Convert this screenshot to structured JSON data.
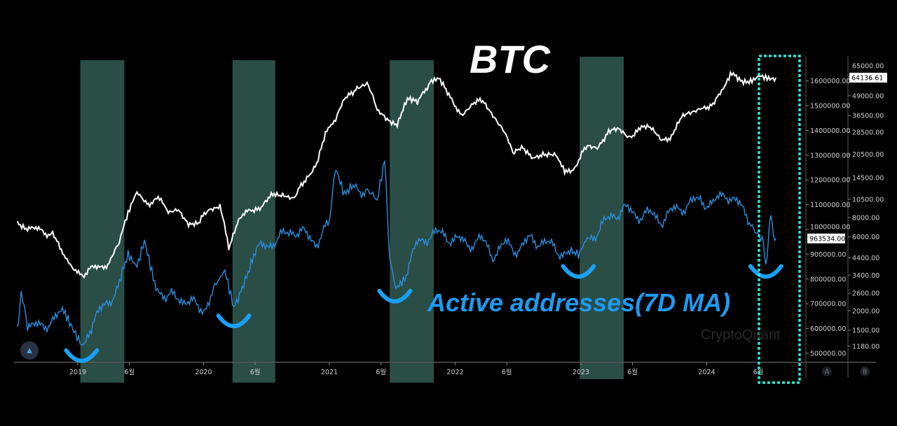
{
  "chart_data": {
    "type": "line",
    "title": "BTC",
    "annotation": "Active addresses(7D MA)",
    "watermark": "CryptoQuant",
    "x_ticks": [
      "2019",
      "6월",
      "2020",
      "6월",
      "2021",
      "6월",
      "2022",
      "6월",
      "2023",
      "6월",
      "2024",
      "6월"
    ],
    "x_tick_dates": [
      2019.0,
      2019.41,
      2020.0,
      2020.41,
      2021.0,
      2021.41,
      2022.0,
      2022.41,
      2023.0,
      2023.41,
      2024.0,
      2024.41
    ],
    "axis_a": {
      "label": "A",
      "scale": "linear",
      "ticks": [
        "500000.00",
        "600000.00",
        "700000.00",
        "800000.00",
        "900000.00",
        "1000000.00",
        "1100000.00",
        "1200000.00",
        "1300000.00",
        "1400000.00",
        "1500000.00",
        "1600000.00"
      ],
      "current": "963534.00"
    },
    "axis_b": {
      "label": "B",
      "scale": "log",
      "ticks": [
        "1180.00",
        "1500.00",
        "2000.00",
        "2600.00",
        "3400.00",
        "4400.00",
        "6000.00",
        "8000.00",
        "10500.00",
        "14500.00",
        "20500.00",
        "28500.00",
        "36500.00",
        "49000.00",
        "65000.00"
      ],
      "current": "64136.61"
    },
    "shaded_periods": [
      [
        2019.02,
        2019.37
      ],
      [
        2020.23,
        2020.57
      ],
      [
        2021.48,
        2021.83
      ],
      [
        2022.99,
        2023.34
      ]
    ],
    "highlight_period": [
      2024.43,
      2024.75
    ],
    "dips": [
      2019.03,
      2020.24,
      2021.52,
      2022.98,
      2024.47
    ],
    "colors": {
      "btc": "#ffffff",
      "addresses": "#2b8fe0",
      "shade": "#2a4d46",
      "highlight": "#2ee6d6",
      "annotation": "#1e9bf0"
    },
    "series": [
      {
        "name": "BTC",
        "axis": "B",
        "points": [
          [
            2018.52,
            7500
          ],
          [
            2018.6,
            7000
          ],
          [
            2018.7,
            6500
          ],
          [
            2018.8,
            6400
          ],
          [
            2018.88,
            4500
          ],
          [
            2018.95,
            3700
          ],
          [
            2019.05,
            3500
          ],
          [
            2019.15,
            3800
          ],
          [
            2019.25,
            4100
          ],
          [
            2019.33,
            5300
          ],
          [
            2019.4,
            8200
          ],
          [
            2019.47,
            11500
          ],
          [
            2019.55,
            10200
          ],
          [
            2019.65,
            10300
          ],
          [
            2019.72,
            8300
          ],
          [
            2019.8,
            9200
          ],
          [
            2019.88,
            7500
          ],
          [
            2019.96,
            7200
          ],
          [
            2020.05,
            9000
          ],
          [
            2020.13,
            9900
          ],
          [
            2020.2,
            5200
          ],
          [
            2020.28,
            7500
          ],
          [
            2020.38,
            9300
          ],
          [
            2020.47,
            9300
          ],
          [
            2020.56,
            11300
          ],
          [
            2020.64,
            11600
          ],
          [
            2020.72,
            10700
          ],
          [
            2020.81,
            13500
          ],
          [
            2020.9,
            18500
          ],
          [
            2020.98,
            29000
          ],
          [
            2021.05,
            33000
          ],
          [
            2021.13,
            47000
          ],
          [
            2021.22,
            57000
          ],
          [
            2021.3,
            58000
          ],
          [
            2021.38,
            38000
          ],
          [
            2021.46,
            35000
          ],
          [
            2021.54,
            33000
          ],
          [
            2021.62,
            46000
          ],
          [
            2021.7,
            43000
          ],
          [
            2021.8,
            62000
          ],
          [
            2021.87,
            64000
          ],
          [
            2021.95,
            47000
          ],
          [
            2022.05,
            38000
          ],
          [
            2022.13,
            42000
          ],
          [
            2022.22,
            45000
          ],
          [
            2022.3,
            38000
          ],
          [
            2022.38,
            30000
          ],
          [
            2022.46,
            20000
          ],
          [
            2022.54,
            22500
          ],
          [
            2022.63,
            20000
          ],
          [
            2022.72,
            19500
          ],
          [
            2022.8,
            20500
          ],
          [
            2022.87,
            16500
          ],
          [
            2022.96,
            16700
          ],
          [
            2023.05,
            23000
          ],
          [
            2023.13,
            23500
          ],
          [
            2023.22,
            28000
          ],
          [
            2023.3,
            29000
          ],
          [
            2023.38,
            27000
          ],
          [
            2023.47,
            30500
          ],
          [
            2023.55,
            29500
          ],
          [
            2023.63,
            26000
          ],
          [
            2023.72,
            27000
          ],
          [
            2023.8,
            34500
          ],
          [
            2023.88,
            37500
          ],
          [
            2023.96,
            42500
          ],
          [
            2024.05,
            42000
          ],
          [
            2024.13,
            52000
          ],
          [
            2024.2,
            68000
          ],
          [
            2024.28,
            63000
          ],
          [
            2024.36,
            62000
          ],
          [
            2024.42,
            68000
          ],
          [
            2024.48,
            66000
          ],
          [
            2024.55,
            64136.61
          ]
        ]
      },
      {
        "name": "Active addresses(7D MA)",
        "axis": "A",
        "points": [
          [
            2018.52,
            600000
          ],
          [
            2018.55,
            760000
          ],
          [
            2018.6,
            620000
          ],
          [
            2018.7,
            600000
          ],
          [
            2018.8,
            640000
          ],
          [
            2018.9,
            660000
          ],
          [
            2018.97,
            600000
          ],
          [
            2019.03,
            540000
          ],
          [
            2019.12,
            620000
          ],
          [
            2019.22,
            700000
          ],
          [
            2019.32,
            760000
          ],
          [
            2019.4,
            880000
          ],
          [
            2019.47,
            840000
          ],
          [
            2019.53,
            940000
          ],
          [
            2019.6,
            800000
          ],
          [
            2019.7,
            720000
          ],
          [
            2019.8,
            730000
          ],
          [
            2019.9,
            700000
          ],
          [
            2020.0,
            680000
          ],
          [
            2020.1,
            760000
          ],
          [
            2020.17,
            820000
          ],
          [
            2020.24,
            680000
          ],
          [
            2020.32,
            800000
          ],
          [
            2020.4,
            900000
          ],
          [
            2020.5,
            940000
          ],
          [
            2020.6,
            960000
          ],
          [
            2020.7,
            1000000
          ],
          [
            2020.8,
            980000
          ],
          [
            2020.9,
            950000
          ],
          [
            2021.0,
            1020000
          ],
          [
            2021.05,
            1230000
          ],
          [
            2021.12,
            1120000
          ],
          [
            2021.2,
            1180000
          ],
          [
            2021.3,
            1150000
          ],
          [
            2021.38,
            1100000
          ],
          [
            2021.44,
            1260000
          ],
          [
            2021.48,
            900000
          ],
          [
            2021.53,
            780000
          ],
          [
            2021.6,
            820000
          ],
          [
            2021.7,
            940000
          ],
          [
            2021.8,
            980000
          ],
          [
            2021.9,
            980000
          ],
          [
            2022.0,
            960000
          ],
          [
            2022.1,
            940000
          ],
          [
            2022.2,
            960000
          ],
          [
            2022.3,
            900000
          ],
          [
            2022.4,
            940000
          ],
          [
            2022.5,
            920000
          ],
          [
            2022.6,
            960000
          ],
          [
            2022.7,
            950000
          ],
          [
            2022.8,
            920000
          ],
          [
            2022.9,
            900000
          ],
          [
            2022.98,
            880000
          ],
          [
            2023.05,
            960000
          ],
          [
            2023.15,
            1000000
          ],
          [
            2023.25,
            1060000
          ],
          [
            2023.35,
            1080000
          ],
          [
            2023.45,
            1060000
          ],
          [
            2023.55,
            1060000
          ],
          [
            2023.65,
            1040000
          ],
          [
            2023.75,
            1080000
          ],
          [
            2023.85,
            1100000
          ],
          [
            2023.95,
            1120000
          ],
          [
            2024.05,
            1100000
          ],
          [
            2024.15,
            1150000
          ],
          [
            2024.25,
            1100000
          ],
          [
            2024.35,
            1040000
          ],
          [
            2024.43,
            960000
          ],
          [
            2024.47,
            880000
          ],
          [
            2024.51,
            1040000
          ],
          [
            2024.55,
            963534
          ]
        ]
      }
    ]
  }
}
